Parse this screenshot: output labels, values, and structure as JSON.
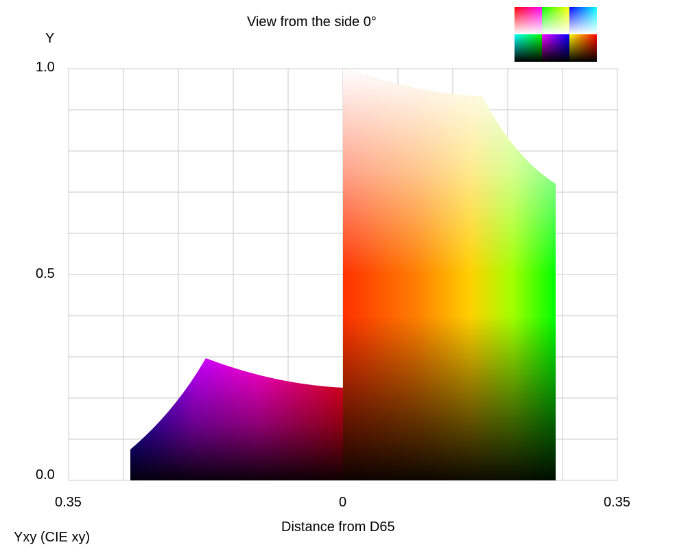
{
  "title": "View from the side 0°",
  "axis_y_label": "Y",
  "axis_x_label": "Distance from D65",
  "color_space_label": "Yxy (CIE xy)",
  "y_ticks": [
    "1.0",
    "0.5",
    "0.0"
  ],
  "x_ticks": {
    "left": "0.35",
    "center": "0",
    "right": "0.35"
  },
  "swatch_grid": [
    {
      "name": "swatch-red-white",
      "colors": [
        "#ff0000",
        "#ffffff",
        "#ff00ff"
      ]
    },
    {
      "name": "swatch-green-white",
      "colors": [
        "#00ff00",
        "#ffffff",
        "#ffff00"
      ]
    },
    {
      "name": "swatch-blue-white",
      "colors": [
        "#0000ff",
        "#ffffff",
        "#00ffff"
      ]
    },
    {
      "name": "swatch-cyan-black",
      "colors": [
        "#00ffff",
        "#000000",
        "#00ff00"
      ]
    },
    {
      "name": "swatch-magenta-black",
      "colors": [
        "#ff00ff",
        "#000000",
        "#0000ff"
      ]
    },
    {
      "name": "swatch-yellow-black",
      "colors": [
        "#ffff00",
        "#000000",
        "#ff0000"
      ]
    }
  ]
}
